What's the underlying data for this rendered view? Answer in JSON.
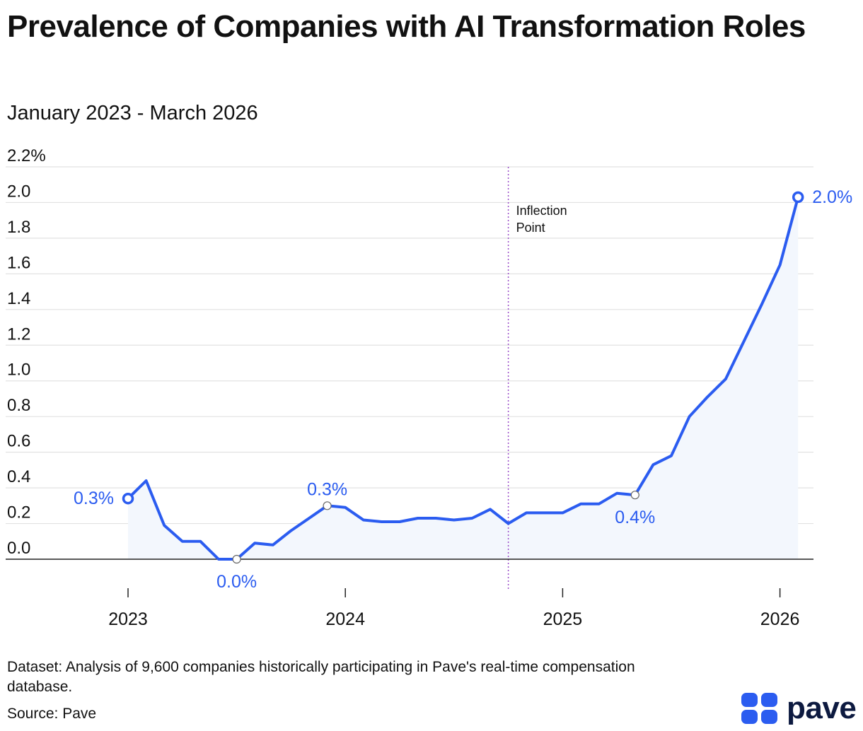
{
  "header": {
    "title": "Prevalence of Companies with AI Transformation Roles",
    "subtitle": "January 2023 - March 2026"
  },
  "footer": {
    "dataset": "Dataset: Analysis of 9,600 companies historically participating in Pave's real-time compensation database.",
    "source": "Source: Pave",
    "logo_text": "pave"
  },
  "colors": {
    "line": "#2b5cf0",
    "area": "#f3f7fd",
    "grid": "#e2e2e2",
    "annotation_line": "#9b4fc9"
  },
  "chart_data": {
    "type": "line",
    "title": "Prevalence of Companies with AI Transformation Roles",
    "subtitle": "January 2023 - March 2026",
    "xlabel": "",
    "ylabel": "",
    "x": [
      "2023-01",
      "2023-02",
      "2023-03",
      "2023-04",
      "2023-05",
      "2023-06",
      "2023-07",
      "2023-08",
      "2023-09",
      "2023-10",
      "2023-11",
      "2023-12",
      "2024-01",
      "2024-02",
      "2024-03",
      "2024-04",
      "2024-05",
      "2024-06",
      "2024-07",
      "2024-08",
      "2024-09",
      "2024-10",
      "2024-11",
      "2024-12",
      "2025-01",
      "2025-02",
      "2025-03",
      "2025-04",
      "2025-05",
      "2025-06",
      "2025-07",
      "2025-08",
      "2025-09",
      "2025-10",
      "2025-11",
      "2025-12",
      "2026-01",
      "2026-02"
    ],
    "values": [
      0.34,
      0.44,
      0.19,
      0.1,
      0.1,
      0.0,
      0.0,
      0.09,
      0.08,
      0.16,
      0.23,
      0.3,
      0.29,
      0.22,
      0.21,
      0.21,
      0.23,
      0.23,
      0.22,
      0.23,
      0.28,
      0.2,
      0.26,
      0.26,
      0.26,
      0.31,
      0.31,
      0.37,
      0.36,
      0.53,
      0.58,
      0.8,
      0.91,
      1.01,
      1.22,
      1.43,
      1.65,
      2.03
    ],
    "ylim": [
      0,
      2.2
    ],
    "yticks": [
      0.0,
      0.2,
      0.4,
      0.6,
      0.8,
      1.0,
      1.2,
      1.4,
      1.6,
      1.8,
      2.0,
      2.2
    ],
    "ytick_labels": [
      "0.0",
      "0.2",
      "0.4",
      "0.6",
      "0.8",
      "1.0",
      "1.2",
      "1.4",
      "1.6",
      "1.8",
      "2.0",
      "2.2%"
    ],
    "xticks": [
      "2023-01",
      "2024-01",
      "2025-01",
      "2026-01"
    ],
    "xtick_labels": [
      "2023",
      "2024",
      "2025",
      "2026"
    ],
    "grid": true,
    "legend": "none",
    "data_labels": [
      {
        "x": "2023-01",
        "text": "0.3%",
        "marker": "filled",
        "side": "left"
      },
      {
        "x": "2023-07",
        "text": "0.0%",
        "marker": "small",
        "side": "below"
      },
      {
        "x": "2023-12",
        "text": "0.3%",
        "marker": "small",
        "side": "above"
      },
      {
        "x": "2025-05",
        "text": "0.4%",
        "marker": "small",
        "side": "below"
      },
      {
        "x": "2026-02",
        "text": "2.0%",
        "marker": "filled",
        "side": "right"
      }
    ],
    "annotations": [
      {
        "x": "2024-10",
        "text": [
          "Inflection",
          "Point"
        ],
        "style": "dotted-vertical-line"
      }
    ]
  }
}
